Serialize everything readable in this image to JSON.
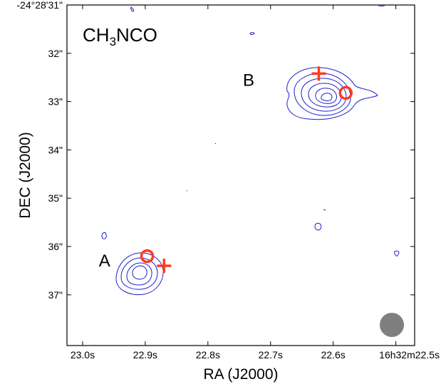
{
  "chart_data": {
    "type": "scatter",
    "title": "CH3NCO",
    "title_main": "CH",
    "title_sub": "3",
    "title_tail": "NCO",
    "xlabel": "RA (J2000)",
    "ylabel": "DEC (J2000)",
    "x_ticks": [
      "23.0s",
      "22.9s",
      "22.8s",
      "22.7s",
      "22.6s",
      "16h32m22.5s"
    ],
    "y_ticks": [
      "-24°28'31\"",
      "32\"",
      "33\"",
      "34\"",
      "35\"",
      "36\"",
      "37\""
    ],
    "x_tick_values": [
      23.0,
      22.9,
      22.8,
      22.7,
      22.6,
      22.5
    ],
    "y_tick_values": [
      31,
      32,
      33,
      34,
      35,
      36,
      37
    ],
    "xlim": [
      23.025,
      22.47
    ],
    "ylim": [
      31,
      38.05
    ],
    "sources": [
      {
        "name": "A",
        "ra_s": 22.897,
        "dec_arcsec": 36.2,
        "marker": "circle"
      },
      {
        "name": "A",
        "ra_s": 22.87,
        "dec_arcsec": 36.4,
        "marker": "plus"
      },
      {
        "name": "B",
        "ra_s": 22.623,
        "dec_arcsec": 32.42,
        "marker": "plus"
      },
      {
        "name": "B",
        "ra_s": 22.58,
        "dec_arcsec": 32.82,
        "marker": "circle"
      }
    ],
    "source_labels": [
      {
        "text": "A",
        "ra_s": 22.965,
        "dec_arcsec": 36.28
      },
      {
        "text": "B",
        "ra_s": 22.735,
        "dec_arcsec": 32.54
      }
    ],
    "marker_color": "#ff3b1f",
    "contour_color": "#1f1fd0",
    "beam_color": "#7f7f7f",
    "beam_position": "bottom-right"
  }
}
